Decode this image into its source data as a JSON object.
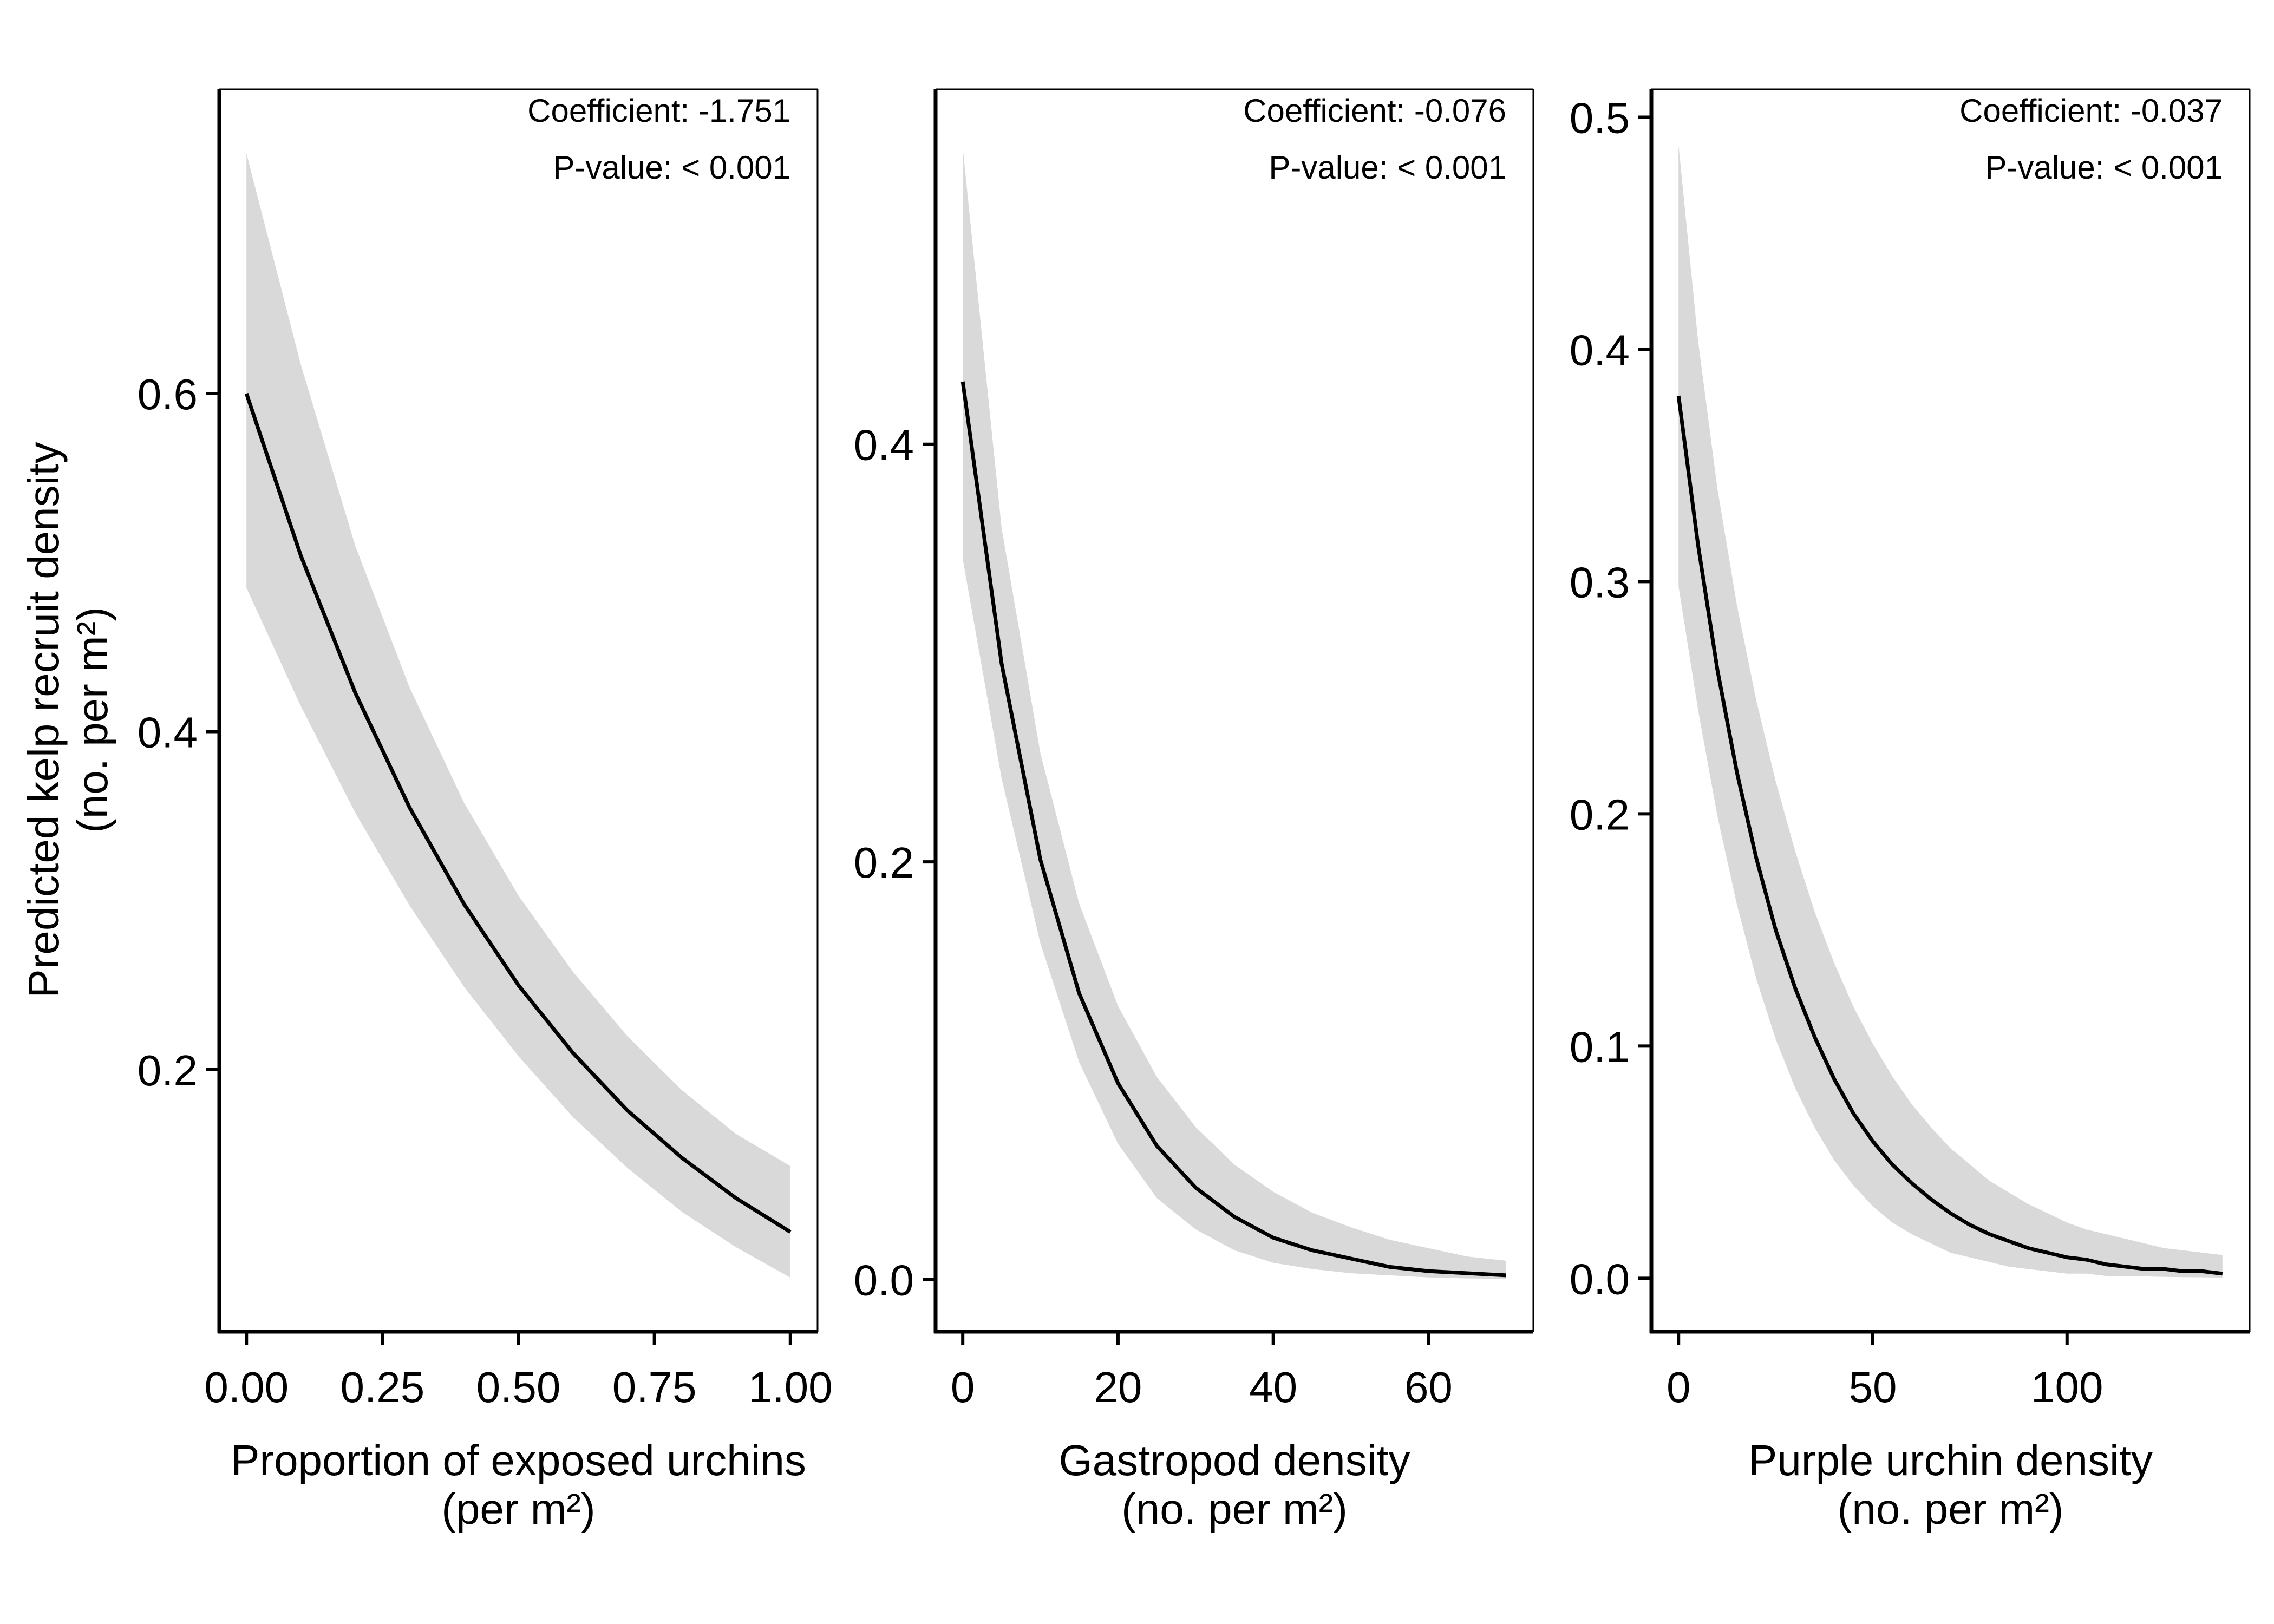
{
  "figure": {
    "y_axis_label_line1": "Predicted kelp recruit density",
    "y_axis_label_line2": "(no. per m²)"
  },
  "colors": {
    "line": "#000000",
    "ribbon": "#d9d9d9",
    "axis": "#000000"
  },
  "chart_data": [
    {
      "type": "line",
      "panel": "left",
      "xlabel_line1": "Proportion of exposed urchins",
      "xlabel_line2": "(per m²)",
      "annotation_line1": "Coefficient: -1.751",
      "annotation_line2": "P-value: < 0.001",
      "x_ticks": [
        0,
        0.25,
        0.5,
        0.75,
        1
      ],
      "x_tick_labels": [
        "0.00",
        "0.25",
        "0.50",
        "0.75",
        "1.00"
      ],
      "y_ticks": [
        0.2,
        0.4,
        0.6
      ],
      "y_tick_labels": [
        "0.2",
        "0.4",
        "0.6"
      ],
      "xlim": [
        -0.05,
        1.05
      ],
      "ylim": [
        0.045,
        0.78
      ],
      "grid": false,
      "series": [
        {
          "x": [
            0,
            0.1,
            0.2,
            0.3,
            0.4,
            0.5,
            0.6,
            0.7,
            0.8,
            0.9,
            1.0
          ],
          "y": [
            0.6,
            0.504,
            0.423,
            0.355,
            0.298,
            0.25,
            0.21,
            0.176,
            0.148,
            0.124,
            0.104
          ],
          "lower": [
            0.485,
            0.415,
            0.352,
            0.297,
            0.249,
            0.208,
            0.172,
            0.142,
            0.116,
            0.095,
            0.077
          ],
          "upper": [
            0.742,
            0.617,
            0.51,
            0.426,
            0.358,
            0.303,
            0.258,
            0.22,
            0.188,
            0.162,
            0.143
          ]
        }
      ]
    },
    {
      "type": "line",
      "panel": "middle",
      "xlabel_line1": "Gastropod density",
      "xlabel_line2": "(no. per m²)",
      "annotation_line1": "Coefficient: -0.076",
      "annotation_line2": "P-value: < 0.001",
      "x_ticks": [
        0,
        20,
        40,
        60
      ],
      "x_tick_labels": [
        "0",
        "20",
        "40",
        "60"
      ],
      "y_ticks": [
        0,
        0.2,
        0.4
      ],
      "y_tick_labels": [
        "0.0",
        "0.2",
        "0.4"
      ],
      "xlim": [
        -3.5,
        73.5
      ],
      "ylim": [
        -0.025,
        0.57
      ],
      "grid": false,
      "series": [
        {
          "x": [
            0,
            5,
            10,
            15,
            20,
            25,
            30,
            35,
            40,
            45,
            50,
            55,
            60,
            65,
            70
          ],
          "y": [
            0.43,
            0.295,
            0.201,
            0.137,
            0.094,
            0.064,
            0.044,
            0.03,
            0.02,
            0.014,
            0.01,
            0.006,
            0.004,
            0.003,
            0.002
          ],
          "lower": [
            0.345,
            0.24,
            0.161,
            0.104,
            0.065,
            0.039,
            0.024,
            0.014,
            0.008,
            0.005,
            0.003,
            0.002,
            0.001,
            0.0005,
            0.0003
          ],
          "upper": [
            0.542,
            0.36,
            0.252,
            0.18,
            0.131,
            0.097,
            0.073,
            0.055,
            0.042,
            0.032,
            0.025,
            0.019,
            0.015,
            0.011,
            0.009
          ]
        }
      ]
    },
    {
      "type": "line",
      "panel": "right",
      "xlabel_line1": "Purple urchin density",
      "xlabel_line2": "(no. per m²)",
      "annotation_line1": "Coefficient: -0.037",
      "annotation_line2": "P-value: < 0.001",
      "x_ticks": [
        0,
        50,
        100
      ],
      "x_tick_labels": [
        "0",
        "50",
        "100"
      ],
      "y_ticks": [
        0,
        0.1,
        0.2,
        0.3,
        0.4,
        0.5
      ],
      "y_tick_labels": [
        "0.0",
        "0.1",
        "0.2",
        "0.3",
        "0.4",
        "0.5"
      ],
      "xlim": [
        -7,
        147
      ],
      "ylim": [
        -0.023,
        0.512
      ],
      "grid": false,
      "series": [
        {
          "x": [
            0,
            5,
            10,
            15,
            20,
            25,
            30,
            35,
            40,
            45,
            50,
            55,
            60,
            65,
            70,
            75,
            80,
            85,
            90,
            95,
            100,
            105,
            110,
            115,
            120,
            125,
            130,
            135,
            140
          ],
          "y": [
            0.38,
            0.316,
            0.262,
            0.218,
            0.181,
            0.15,
            0.125,
            0.104,
            0.086,
            0.071,
            0.059,
            0.049,
            0.041,
            0.034,
            0.028,
            0.023,
            0.019,
            0.016,
            0.013,
            0.011,
            0.009,
            0.008,
            0.006,
            0.005,
            0.004,
            0.004,
            0.003,
            0.003,
            0.002
          ],
          "lower": [
            0.298,
            0.245,
            0.199,
            0.161,
            0.129,
            0.103,
            0.082,
            0.065,
            0.051,
            0.04,
            0.031,
            0.024,
            0.019,
            0.015,
            0.011,
            0.009,
            0.007,
            0.005,
            0.004,
            0.003,
            0.002,
            0.002,
            0.001,
            0.001,
            0.0008,
            0.0006,
            0.0005,
            0.0004,
            0.0003
          ],
          "upper": [
            0.488,
            0.404,
            0.34,
            0.29,
            0.249,
            0.214,
            0.184,
            0.158,
            0.136,
            0.117,
            0.101,
            0.087,
            0.075,
            0.065,
            0.056,
            0.049,
            0.042,
            0.037,
            0.032,
            0.028,
            0.024,
            0.021,
            0.019,
            0.017,
            0.015,
            0.013,
            0.012,
            0.011,
            0.01
          ]
        }
      ]
    }
  ]
}
